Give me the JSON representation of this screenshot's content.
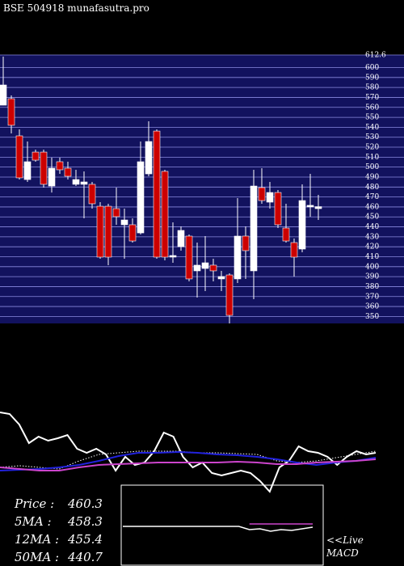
{
  "chart_data": [
    {
      "type": "candlestick",
      "title": "BSE 504918 munafasutra.pro",
      "ylim": [
        343,
        612.6
      ],
      "yticks": [
        350,
        360,
        370,
        380,
        390,
        400,
        410,
        420,
        430,
        440,
        450,
        460,
        470,
        480,
        490,
        500,
        510,
        520,
        530,
        540,
        550,
        560,
        570,
        580,
        590,
        600,
        612.6
      ],
      "up_color": "#ffffff",
      "down_color": "#cc0000",
      "grid": true,
      "open": [
        562.2,
        568.7,
        531.4,
        487.5,
        515.1,
        515.1,
        481.0,
        505.4,
        498.9,
        482.7,
        482.7,
        482.7,
        460.7,
        460.7,
        458.3,
        442.1,
        442.1,
        433.9,
        493.2,
        536.2,
        495.7,
        409.6,
        420.1,
        430.7,
        395.8,
        398.2,
        401.5,
        387.7,
        391.7,
        387.7,
        430.7,
        395.8,
        479.4,
        464.8,
        474.5,
        438.8,
        424.2,
        417.7,
        460.0,
        458.3
      ],
      "high": [
        611.0,
        572.0,
        537.9,
        525.7,
        517.6,
        517.6,
        509.5,
        509.5,
        505.4,
        497.3,
        495.7,
        485.1,
        464.8,
        463.2,
        479.4,
        458.3,
        448.6,
        525.7,
        546.0,
        537.9,
        497.3,
        444.5,
        440.4,
        432.3,
        424.2,
        430.7,
        408.0,
        395.8,
        393.3,
        468.9,
        440.4,
        497.3,
        498.9,
        485.1,
        477.0,
        463.2,
        428.3,
        482.7,
        493.2,
        472.1
      ],
      "low": [
        562.2,
        533.8,
        487.5,
        485.1,
        505.4,
        479.4,
        474.5,
        493.2,
        487.5,
        481.0,
        448.6,
        458.3,
        408.0,
        401.5,
        442.1,
        408.0,
        424.2,
        432.3,
        490.8,
        408.0,
        406.3,
        403.9,
        416.1,
        385.2,
        369.0,
        375.5,
        385.2,
        375.5,
        343.0,
        383.6,
        387.7,
        367.4,
        463.2,
        458.3,
        438.8,
        424.2,
        390.1,
        414.5,
        450.2,
        446.9
      ],
      "close": [
        582.5,
        542.0,
        489.2,
        505.4,
        507.0,
        482.7,
        498.9,
        497.3,
        490.8,
        487.5,
        485.1,
        463.2,
        409.6,
        409.6,
        450.2,
        446.9,
        425.8,
        505.4,
        525.7,
        409.6,
        409.6,
        411.2,
        436.4,
        387.7,
        401.5,
        403.9,
        395.8,
        390.1,
        351.1,
        430.7,
        416.1,
        481.0,
        466.4,
        474.5,
        442.1,
        425.8,
        409.6,
        466.4,
        461.6,
        460.3
      ]
    },
    {
      "type": "line",
      "ylim": [
        0,
        110
      ],
      "series": [
        {
          "color": "#ffffff",
          "dash": false,
          "values": [
            100,
            98,
            85,
            62,
            70,
            65,
            68,
            72,
            55,
            50,
            55,
            48,
            28,
            45,
            35,
            38,
            52,
            75,
            70,
            45,
            32,
            38,
            25,
            22,
            25,
            28,
            25,
            15,
            2,
            32,
            40,
            58,
            52,
            50,
            45,
            35,
            45,
            52,
            48,
            50
          ]
        },
        {
          "color": "#ffffff",
          "dash": true,
          "values": [
            32,
            34,
            32,
            30,
            40,
            48,
            50,
            52,
            52,
            52,
            50,
            50,
            49,
            48,
            40,
            38,
            40,
            44,
            48,
            52
          ]
        },
        {
          "color": "#2222dd",
          "dash": false,
          "values": [
            28,
            29,
            30,
            32,
            35,
            40,
            46,
            50,
            50,
            51,
            50,
            48,
            47,
            45,
            42,
            38,
            35,
            38,
            40,
            44
          ]
        },
        {
          "color": "#cc44cc",
          "dash": false,
          "values": [
            32,
            30,
            28,
            28,
            32,
            35,
            36,
            37,
            38,
            38,
            38,
            38,
            39,
            38,
            36,
            36,
            38,
            39,
            40,
            42
          ]
        }
      ]
    },
    {
      "type": "macd",
      "ylim": [
        0,
        100
      ],
      "label": "<<Live MACD",
      "series": [
        {
          "color": "#ffffff",
          "values": [
            49,
            49,
            49,
            49,
            49,
            49,
            49,
            49,
            49,
            49,
            49,
            49,
            45,
            46,
            43,
            45,
            44,
            46,
            48
          ]
        },
        {
          "color": "#cc44cc",
          "values": [
            null,
            null,
            null,
            null,
            null,
            null,
            null,
            null,
            null,
            null,
            null,
            null,
            52,
            52,
            52,
            52,
            52,
            52,
            52
          ]
        }
      ]
    }
  ],
  "info": [
    {
      "label": "Price   :",
      "value": 460.3
    },
    {
      "label": "5MA  :",
      "value": 458.3
    },
    {
      "label": "12MA :",
      "value": 455.4
    },
    {
      "label": "50MA :",
      "value": 440.7
    }
  ]
}
